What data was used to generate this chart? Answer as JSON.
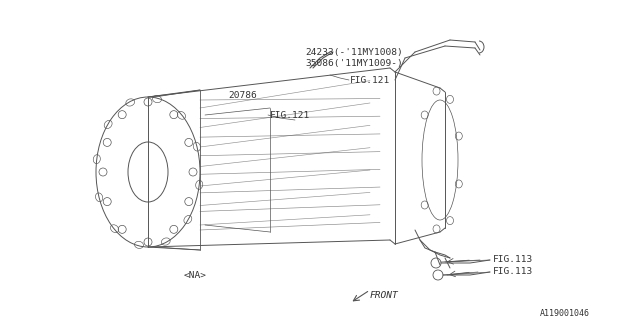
{
  "background_color": "#ffffff",
  "line_color": "#555555",
  "text_color": "#333333",
  "fig_width": 6.4,
  "fig_height": 3.2,
  "dpi": 100,
  "labels": {
    "part1": "24233(-'11MY1008)",
    "part2": "35086('11MY1009-)",
    "part3": "20786",
    "fig121a": "FIG.121",
    "fig121b": "FIG.121",
    "fig113a": "FIG.113",
    "fig113b": "FIG.113",
    "na": "<NA>",
    "front": "FRONT",
    "doc_id": "A119001046"
  }
}
